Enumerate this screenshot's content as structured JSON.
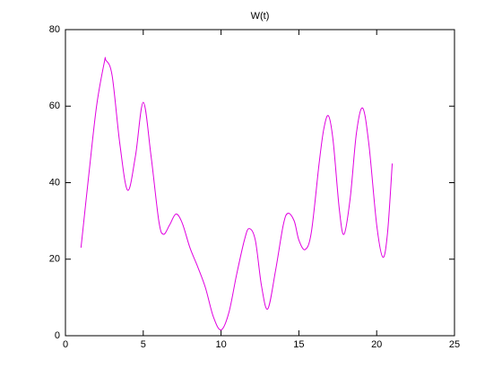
{
  "chart_data": {
    "type": "line",
    "title": "W(t)",
    "x": [
      1,
      1.5,
      2,
      2.5,
      2.6,
      3,
      3.5,
      4,
      4.5,
      5,
      5.5,
      6,
      6.3,
      6.7,
      7.1,
      7.5,
      8,
      8.5,
      9,
      9.5,
      10,
      10.5,
      11,
      11.5,
      11.8,
      12.2,
      12.6,
      13,
      13.5,
      14,
      14.3,
      14.7,
      15,
      15.4,
      15.8,
      16.3,
      16.6,
      16.9,
      17.2,
      17.6,
      17.9,
      18.3,
      18.7,
      19.1,
      19.5,
      20,
      20.4,
      20.7,
      21
    ],
    "series": [
      {
        "color": "#e000e0",
        "values": [
          23,
          42,
          60,
          71.5,
          72,
          68,
          50,
          38,
          47,
          61,
          47,
          30,
          26.5,
          29,
          31.8,
          29.5,
          23,
          18,
          12.5,
          5,
          1.5,
          6,
          16,
          25,
          28,
          25,
          13,
          7,
          17,
          29,
          32,
          30,
          25,
          22.5,
          27,
          45,
          54,
          57.5,
          51,
          33,
          26.5,
          36,
          53,
          59.5,
          50,
          29,
          20.5,
          27,
          45
        ]
      }
    ],
    "xlim": [
      0,
      25
    ],
    "xticks": [
      0,
      5,
      10,
      15,
      20,
      25
    ],
    "ylim": [
      0,
      80
    ],
    "yticks": [
      0,
      20,
      40,
      60,
      80
    ]
  }
}
